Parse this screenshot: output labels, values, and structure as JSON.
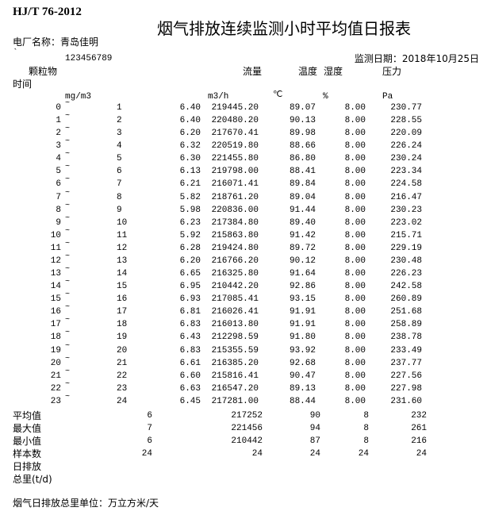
{
  "standard": "HJ/T 76-2012",
  "title": "烟气排放连续监测小时平均值日报表",
  "plant_label": "电厂名称：青岛佳明",
  "backtick": "`",
  "code": "123456789",
  "date_label": "监测日期：2018年10月25日",
  "headers": {
    "particulate": "颗粒物",
    "flow": "流量",
    "temp": "温度",
    "humidity": "湿度",
    "pressure": "压力",
    "time": "时间"
  },
  "units": {
    "particulate": "mg/m3",
    "flow": "m3/h",
    "temp": "℃",
    "humidity": "%",
    "pressure": "Pa"
  },
  "separator": "~",
  "rows": [
    {
      "start": "0",
      "end": "1",
      "pm": "6.40",
      "flow": "219445.20",
      "temp": "89.07",
      "hum": "8.00",
      "pa": "230.77"
    },
    {
      "start": "1",
      "end": "2",
      "pm": "6.40",
      "flow": "220480.20",
      "temp": "90.13",
      "hum": "8.00",
      "pa": "228.55"
    },
    {
      "start": "2",
      "end": "3",
      "pm": "6.20",
      "flow": "217670.41",
      "temp": "89.98",
      "hum": "8.00",
      "pa": "220.09"
    },
    {
      "start": "3",
      "end": "4",
      "pm": "6.32",
      "flow": "220519.80",
      "temp": "88.66",
      "hum": "8.00",
      "pa": "226.24"
    },
    {
      "start": "4",
      "end": "5",
      "pm": "6.30",
      "flow": "221455.80",
      "temp": "86.80",
      "hum": "8.00",
      "pa": "230.24"
    },
    {
      "start": "5",
      "end": "6",
      "pm": "6.13",
      "flow": "219798.00",
      "temp": "88.41",
      "hum": "8.00",
      "pa": "223.34"
    },
    {
      "start": "6",
      "end": "7",
      "pm": "6.21",
      "flow": "216071.41",
      "temp": "89.84",
      "hum": "8.00",
      "pa": "224.58"
    },
    {
      "start": "7",
      "end": "8",
      "pm": "5.82",
      "flow": "218761.20",
      "temp": "89.04",
      "hum": "8.00",
      "pa": "216.47"
    },
    {
      "start": "8",
      "end": "9",
      "pm": "5.98",
      "flow": "220836.00",
      "temp": "91.44",
      "hum": "8.00",
      "pa": "230.23"
    },
    {
      "start": "9",
      "end": "10",
      "pm": "6.23",
      "flow": "217384.80",
      "temp": "89.40",
      "hum": "8.00",
      "pa": "223.02"
    },
    {
      "start": "10",
      "end": "11",
      "pm": "5.92",
      "flow": "215863.80",
      "temp": "91.42",
      "hum": "8.00",
      "pa": "215.71"
    },
    {
      "start": "11",
      "end": "12",
      "pm": "6.28",
      "flow": "219424.80",
      "temp": "89.72",
      "hum": "8.00",
      "pa": "229.19"
    },
    {
      "start": "12",
      "end": "13",
      "pm": "6.20",
      "flow": "216766.20",
      "temp": "90.12",
      "hum": "8.00",
      "pa": "230.48"
    },
    {
      "start": "13",
      "end": "14",
      "pm": "6.65",
      "flow": "216325.80",
      "temp": "91.64",
      "hum": "8.00",
      "pa": "226.23"
    },
    {
      "start": "14",
      "end": "15",
      "pm": "6.95",
      "flow": "210442.20",
      "temp": "92.86",
      "hum": "8.00",
      "pa": "242.58"
    },
    {
      "start": "15",
      "end": "16",
      "pm": "6.93",
      "flow": "217085.41",
      "temp": "93.15",
      "hum": "8.00",
      "pa": "260.89"
    },
    {
      "start": "16",
      "end": "17",
      "pm": "6.81",
      "flow": "216026.41",
      "temp": "91.91",
      "hum": "8.00",
      "pa": "251.68"
    },
    {
      "start": "17",
      "end": "18",
      "pm": "6.83",
      "flow": "216013.80",
      "temp": "91.91",
      "hum": "8.00",
      "pa": "258.89"
    },
    {
      "start": "18",
      "end": "19",
      "pm": "6.43",
      "flow": "212298.59",
      "temp": "91.80",
      "hum": "8.00",
      "pa": "238.78"
    },
    {
      "start": "19",
      "end": "20",
      "pm": "6.83",
      "flow": "215355.59",
      "temp": "93.92",
      "hum": "8.00",
      "pa": "233.49"
    },
    {
      "start": "20",
      "end": "21",
      "pm": "6.61",
      "flow": "216385.20",
      "temp": "92.68",
      "hum": "8.00",
      "pa": "237.77"
    },
    {
      "start": "21",
      "end": "22",
      "pm": "6.60",
      "flow": "215816.41",
      "temp": "90.47",
      "hum": "8.00",
      "pa": "227.56"
    },
    {
      "start": "22",
      "end": "23",
      "pm": "6.63",
      "flow": "216547.20",
      "temp": "89.13",
      "hum": "8.00",
      "pa": "227.98"
    },
    {
      "start": "23",
      "end": "24",
      "pm": "6.45",
      "flow": "217281.00",
      "temp": "88.44",
      "hum": "8.00",
      "pa": "231.60"
    }
  ],
  "summary": [
    {
      "label": "平均值",
      "pm": "6",
      "flow": "217252",
      "temp": "90",
      "hum": "8",
      "pa": "232"
    },
    {
      "label": "最大值",
      "pm": "7",
      "flow": "221456",
      "temp": "94",
      "hum": "8",
      "pa": "261"
    },
    {
      "label": "最小值",
      "pm": "6",
      "flow": "210442",
      "temp": "87",
      "hum": "8",
      "pa": "216"
    },
    {
      "label": "样本数",
      "pm": "24",
      "flow": "24",
      "temp": "24",
      "hum": "24",
      "pa": "24"
    }
  ],
  "daily_label_1": "日排放",
  "daily_label_2": "总里(t/d)",
  "footer": "烟气日排放总里单位：万立方米/天"
}
